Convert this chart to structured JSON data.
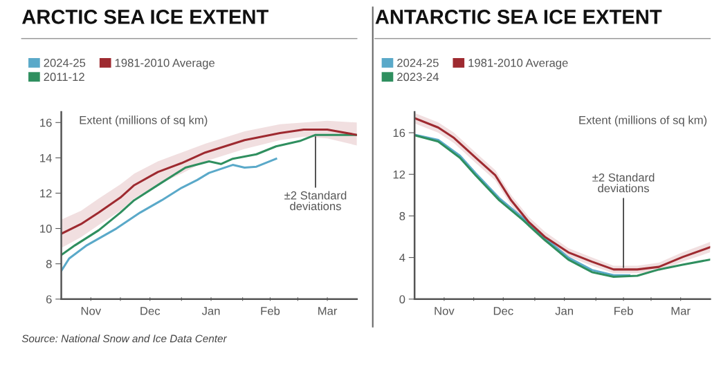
{
  "chart_data": [
    {
      "type": "line",
      "title": "ARCTIC SEA ICE EXTENT",
      "ylabel": "Extent (millions of sq km)",
      "legend": "top left",
      "grid": false,
      "marker": "none",
      "line_style": "solid",
      "xlim": [
        "2024-11-01",
        "2025-03-31"
      ],
      "ylim": [
        6,
        16.6
      ],
      "yticks": [
        6,
        8,
        10,
        12,
        14,
        16
      ],
      "xticks": [
        {
          "value": "2024-11-16",
          "label": "Nov"
        },
        {
          "value": "2024-12-01",
          "label": null
        },
        {
          "value": "2024-12-16",
          "label": "Dec"
        },
        {
          "value": "2025-01-01",
          "label": null
        },
        {
          "value": "2025-01-16",
          "label": "Jan"
        },
        {
          "value": "2025-02-01",
          "label": null
        },
        {
          "value": "2025-02-15",
          "label": "Feb"
        },
        {
          "value": "2025-03-01",
          "label": null
        },
        {
          "value": "2025-03-16",
          "label": "Mar"
        }
      ],
      "series": [
        {
          "name": "2024-25",
          "color": "#5aa9c9",
          "x": [
            "2024-11-01",
            "2024-11-05",
            "2024-11-14",
            "2024-11-29",
            "2024-12-11",
            "2024-12-22",
            "2025-01-01",
            "2025-01-09",
            "2025-01-15",
            "2025-01-27",
            "2025-02-02",
            "2025-02-08",
            "2025-02-18"
          ],
          "values": [
            7.6,
            8.3,
            9.05,
            10.0,
            10.9,
            11.6,
            12.3,
            12.75,
            13.15,
            13.6,
            13.45,
            13.5,
            13.95
          ]
        },
        {
          "name": "2011-12",
          "color": "#2f8f5f",
          "x": [
            "2024-11-01",
            "2024-11-08",
            "2024-11-20",
            "2024-12-01",
            "2024-12-08",
            "2024-12-22",
            "2025-01-03",
            "2025-01-15",
            "2025-01-21",
            "2025-01-27",
            "2025-02-08",
            "2025-02-18",
            "2025-03-02",
            "2025-03-10",
            "2025-03-22",
            "2025-03-31"
          ],
          "values": [
            8.5,
            9.05,
            9.9,
            10.9,
            11.6,
            12.6,
            13.45,
            13.8,
            13.65,
            13.95,
            14.2,
            14.65,
            14.95,
            15.3,
            15.3,
            15.3
          ]
        },
        {
          "name": "1981-2010 Average",
          "color": "#9e2a30",
          "x": [
            "2024-11-01",
            "2024-11-11",
            "2024-11-20",
            "2024-12-01",
            "2024-12-08",
            "2024-12-20",
            "2025-01-01",
            "2025-01-13",
            "2025-02-02",
            "2025-02-20",
            "2025-03-04",
            "2025-03-16",
            "2025-03-31"
          ],
          "values": [
            9.7,
            10.25,
            10.9,
            11.75,
            12.45,
            13.2,
            13.7,
            14.3,
            15.0,
            15.4,
            15.6,
            15.6,
            15.3
          ],
          "lower": [
            8.9,
            9.5,
            10.2,
            11.0,
            11.7,
            12.5,
            13.1,
            13.8,
            14.5,
            15.0,
            15.2,
            15.1,
            14.7
          ],
          "upper": [
            10.5,
            11.0,
            11.7,
            12.5,
            13.1,
            13.8,
            14.3,
            14.8,
            15.5,
            15.9,
            16.0,
            16.1,
            16.0
          ]
        }
      ],
      "annotations": [
        {
          "text": "±2 Standard deviations",
          "x": "2025-03-10",
          "y": 15.3
        },
        "Source: National Snow and Ice Data Center"
      ]
    },
    {
      "type": "line",
      "title": "ANTARCTIC SEA ICE EXTENT",
      "ylabel": "Extent (millions of sq km)",
      "legend": "top left",
      "grid": false,
      "marker": "none",
      "line_style": "solid",
      "xlim": [
        "2024-11-01",
        "2025-03-31"
      ],
      "ylim": [
        0,
        18
      ],
      "yticks": [
        0,
        4,
        8,
        12,
        16
      ],
      "xticks": [
        {
          "value": "2024-11-16",
          "label": "Nov"
        },
        {
          "value": "2024-12-01",
          "label": null
        },
        {
          "value": "2024-12-16",
          "label": "Dec"
        },
        {
          "value": "2025-01-01",
          "label": null
        },
        {
          "value": "2025-01-16",
          "label": "Jan"
        },
        {
          "value": "2025-02-01",
          "label": null
        },
        {
          "value": "2025-02-15",
          "label": "Feb"
        },
        {
          "value": "2025-03-01",
          "label": null
        },
        {
          "value": "2025-03-16",
          "label": "Mar"
        }
      ],
      "series": [
        {
          "name": "2024-25",
          "color": "#5aa9c9",
          "x": [
            "2024-11-01",
            "2024-11-13",
            "2024-11-24",
            "2024-12-02",
            "2024-12-14",
            "2024-12-26",
            "2025-01-06",
            "2025-01-18",
            "2025-01-30",
            "2025-02-10",
            "2025-02-18"
          ],
          "values": [
            15.8,
            15.3,
            13.8,
            12.1,
            9.7,
            7.8,
            5.9,
            4.0,
            2.8,
            2.3,
            2.3
          ]
        },
        {
          "name": "2023-24",
          "color": "#2f8f5f",
          "x": [
            "2024-11-01",
            "2024-11-13",
            "2024-11-24",
            "2024-12-02",
            "2024-12-14",
            "2024-12-26",
            "2025-01-06",
            "2025-01-18",
            "2025-01-30",
            "2025-02-10",
            "2025-02-22",
            "2025-03-05",
            "2025-03-17",
            "2025-03-31"
          ],
          "values": [
            15.75,
            15.15,
            13.6,
            11.9,
            9.5,
            7.6,
            5.7,
            3.8,
            2.6,
            2.15,
            2.25,
            2.85,
            3.3,
            3.8
          ]
        },
        {
          "name": "1981-2010 Average",
          "color": "#9e2a30",
          "x": [
            "2024-11-01",
            "2024-11-13",
            "2024-11-21",
            "2024-12-02",
            "2024-12-12",
            "2024-12-20",
            "2024-12-29",
            "2025-01-06",
            "2025-01-18",
            "2025-01-30",
            "2025-02-10",
            "2025-02-22",
            "2025-03-05",
            "2025-03-17",
            "2025-03-31"
          ],
          "values": [
            17.4,
            16.5,
            15.5,
            13.6,
            11.9,
            9.5,
            7.4,
            6.0,
            4.5,
            3.6,
            2.85,
            2.85,
            3.1,
            4.05,
            5.0
          ],
          "lower": [
            16.9,
            16.0,
            15.0,
            13.1,
            11.4,
            9.0,
            6.9,
            5.5,
            4.1,
            3.2,
            2.5,
            2.5,
            2.7,
            3.6,
            4.5
          ],
          "upper": [
            17.9,
            17.0,
            16.0,
            14.1,
            12.4,
            10.0,
            7.9,
            6.5,
            4.9,
            4.0,
            3.2,
            3.2,
            3.5,
            4.5,
            5.5
          ]
        }
      ],
      "annotations": [
        {
          "text": "±2 Standard deviations",
          "x": "2025-02-15",
          "y": 2.85
        }
      ]
    }
  ]
}
